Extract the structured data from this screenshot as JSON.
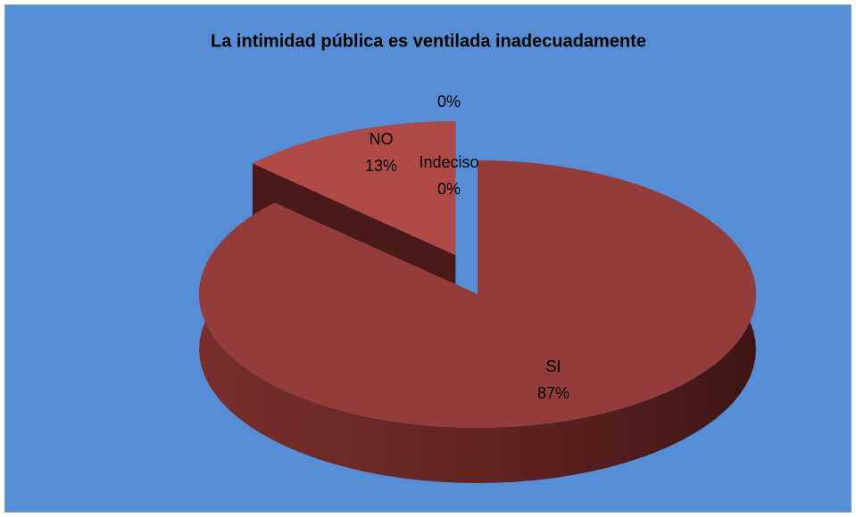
{
  "chart_data": {
    "type": "pie",
    "title": "La intimidad pública es ventilada inadecuadamente",
    "categories": [
      "SI",
      "NO",
      "Indeciso",
      null
    ],
    "values": [
      87,
      13,
      0,
      0
    ],
    "value_labels": [
      "87%",
      "13%",
      "0%",
      "0%"
    ],
    "colors": [
      "#943c3a",
      "#b04a46",
      "#9c4240",
      "#9c4240"
    ],
    "background": "#558ed5"
  }
}
